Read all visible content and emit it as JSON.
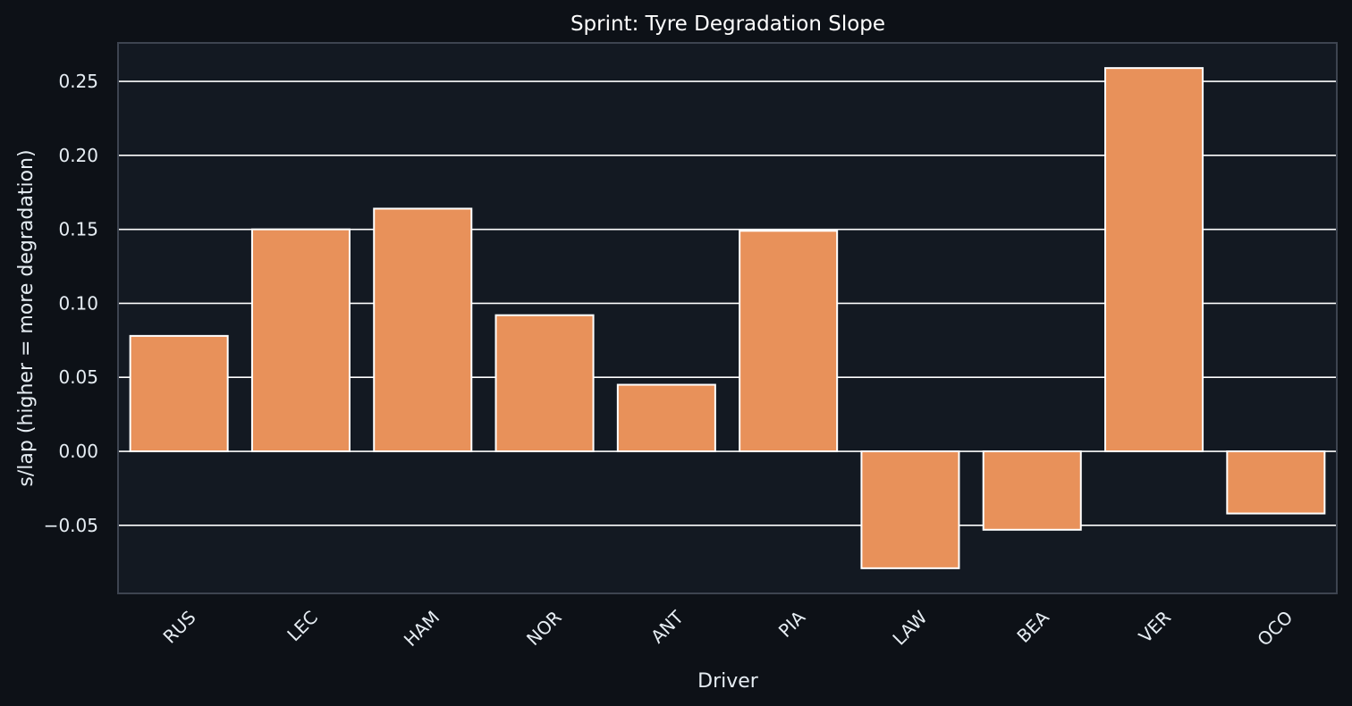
{
  "chart_data": {
    "type": "bar",
    "title": "Sprint: Tyre Degradation Slope",
    "xlabel": "Driver",
    "ylabel": "s/lap (higher = more degradation)",
    "categories": [
      "RUS",
      "LEC",
      "HAM",
      "NOR",
      "ANT",
      "PIA",
      "LAW",
      "BEA",
      "VER",
      "OCO"
    ],
    "values": [
      0.078,
      0.15,
      0.164,
      0.092,
      0.045,
      0.149,
      -0.079,
      -0.053,
      0.259,
      -0.042
    ],
    "ylim": [
      -0.096,
      0.276
    ],
    "yticks": [
      -0.05,
      0.0,
      0.05,
      0.1,
      0.15,
      0.2,
      0.25
    ],
    "ytick_labels": [
      "−0.05",
      "0.00",
      "0.05",
      "0.10",
      "0.15",
      "0.20",
      "0.25"
    ],
    "grid": true,
    "colors": {
      "bar_fill": "#e8915a",
      "bar_edge": "#ffffff",
      "plot_background": "#131922",
      "figure_background": "#0d1117",
      "grid": "#ffffff",
      "frame": "#3d4450",
      "text": "#e6edf3"
    }
  }
}
